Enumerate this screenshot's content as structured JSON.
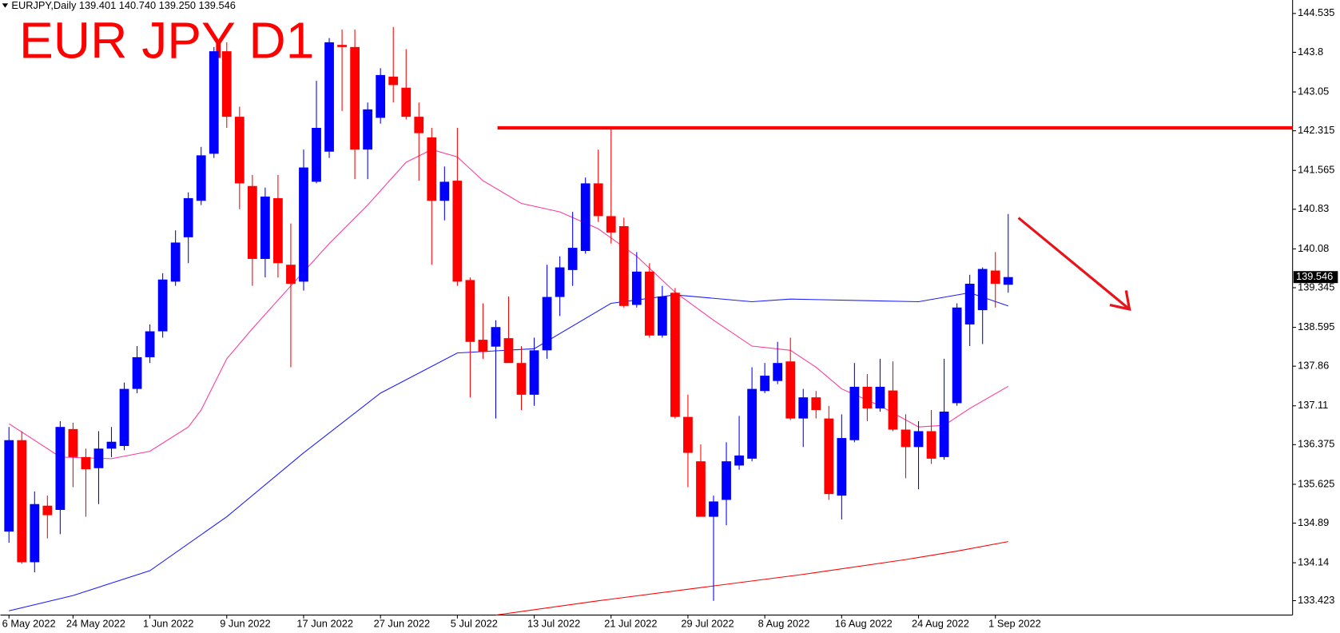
{
  "chart_data": {
    "type": "candlestick",
    "header": "EURJPY,Daily  139.401 140.740 139.250 139.546",
    "title": "EUR JPY D1",
    "categories": [
      "6 May 2022",
      null,
      null,
      null,
      null,
      "24 May 2022",
      null,
      null,
      null,
      null,
      null,
      "1 Jun 2022",
      null,
      null,
      null,
      null,
      null,
      "9 Jun 2022",
      null,
      null,
      null,
      null,
      null,
      "17 Jun 2022",
      null,
      null,
      null,
      null,
      null,
      "27 Jun 2022",
      null,
      null,
      null,
      null,
      null,
      "5 Jul 2022",
      null,
      null,
      null,
      null,
      null,
      "13 Jul 2022",
      null,
      null,
      null,
      null,
      null,
      "21 Jul 2022",
      null,
      null,
      null,
      null,
      null,
      "29 Jul 2022",
      null,
      null,
      null,
      null,
      null,
      "8 Aug 2022",
      null,
      null,
      null,
      null,
      null,
      "16 Aug 2022",
      null,
      null,
      null,
      null,
      null,
      "24 Aug 2022",
      null,
      null,
      null,
      null,
      null,
      "1 Sep 2022",
      null
    ],
    "open": [
      134.73,
      136.46,
      134.15,
      135.22,
      135.14,
      136.67,
      136.14,
      135.93,
      136.3,
      136.35,
      137.43,
      138.03,
      138.52,
      139.46,
      140.3,
      140.99,
      141.88,
      143.82,
      142.58,
      141.27,
      139.89,
      141.04,
      139.78,
      139.46,
      141.35,
      141.92,
      143.94,
      143.9,
      141.96,
      142.56,
      143.34,
      143.13,
      142.58,
      142.19,
      140.99,
      141.37,
      139.49,
      138.36,
      138.23,
      138.39,
      137.92,
      137.32,
      138.16,
      139.17,
      139.68,
      140.04,
      141.32,
      140.7,
      140.51,
      139.02,
      139.65,
      138.44,
      139.25,
      136.9,
      136.06,
      135.01,
      135.33,
      135.98,
      136.11,
      137.39,
      137.58,
      137.95,
      136.87,
      137.27,
      136.87,
      135.41,
      136.46,
      137.47,
      137.06,
      137.4,
      136.66,
      136.33,
      136.63,
      136.14,
      137.16,
      138.65,
      138.92,
      139.67,
      139.401
    ],
    "high": [
      136.71,
      136.63,
      135.49,
      135.41,
      136.82,
      136.79,
      136.3,
      136.63,
      136.71,
      137.55,
      138.24,
      138.65,
      139.62,
      140.43,
      141.15,
      142.01,
      143.9,
      143.99,
      142.77,
      141.48,
      141.24,
      141.48,
      140.56,
      141.96,
      143.26,
      144.07,
      144.23,
      144.23,
      142.85,
      143.5,
      144.28,
      143.86,
      142.85,
      142.37,
      141.64,
      142.37,
      139.54,
      139.05,
      138.73,
      139.18,
      138.24,
      138.4,
      139.78,
      139.94,
      140.78,
      141.43,
      141.96,
      142.37,
      140.67,
      140.02,
      139.81,
      139.38,
      139.34,
      137.32,
      136.38,
      135.41,
      136.42,
      136.92,
      137.84,
      137.92,
      138.32,
      138.4,
      137.43,
      137.39,
      137.11,
      136.95,
      137.92,
      137.71,
      138.0,
      137.95,
      136.95,
      136.82,
      137.03,
      138.0,
      139.05,
      139.59,
      139.73,
      140.02,
      140.74
    ],
    "low": [
      134.52,
      134.12,
      133.96,
      134.6,
      134.68,
      135.57,
      135.01,
      135.25,
      136.14,
      136.27,
      137.35,
      137.92,
      138.4,
      139.38,
      139.81,
      140.91,
      141.8,
      142.37,
      140.83,
      139.38,
      139.54,
      139.54,
      137.84,
      139.29,
      141.32,
      141.8,
      142.69,
      141.4,
      141.4,
      142.45,
      142.85,
      142.53,
      141.37,
      139.78,
      140.62,
      139.38,
      137.27,
      138.0,
      136.87,
      137.92,
      137.03,
      137.11,
      138.0,
      138.81,
      139.38,
      139.99,
      140.59,
      140.18,
      138.97,
      138.97,
      138.4,
      138.4,
      136.87,
      135.57,
      135.01,
      133.42,
      134.85,
      135.9,
      136.06,
      137.35,
      137.52,
      136.84,
      136.33,
      136.87,
      135.33,
      134.96,
      136.42,
      136.82,
      137.0,
      136.63,
      135.74,
      135.53,
      136.01,
      136.09,
      137.11,
      138.24,
      138.28,
      138.97,
      139.25
    ],
    "close": [
      136.46,
      134.15,
      135.25,
      135.04,
      136.71,
      136.14,
      135.91,
      136.3,
      136.43,
      137.43,
      138.03,
      138.52,
      139.5,
      140.2,
      141.04,
      141.85,
      143.82,
      142.58,
      141.32,
      139.89,
      141.07,
      139.81,
      139.42,
      141.62,
      142.37,
      143.99,
      143.9,
      141.96,
      142.72,
      143.37,
      143.18,
      142.58,
      142.27,
      140.99,
      141.35,
      139.46,
      138.32,
      138.13,
      138.6,
      137.92,
      137.32,
      138.16,
      139.17,
      139.73,
      140.1,
      141.32,
      140.7,
      140.39,
      139.0,
      139.65,
      138.44,
      139.18,
      136.9,
      136.22,
      135.01,
      135.3,
      136.06,
      136.17,
      137.43,
      137.68,
      137.92,
      136.87,
      137.27,
      137.03,
      135.44,
      136.5,
      137.47,
      137.06,
      137.47,
      136.66,
      136.33,
      136.63,
      136.11,
      137.0,
      138.97,
      139.42,
      139.7,
      139.42,
      139.546
    ],
    "up_color": "#0000ff",
    "down_color": "#ff0000",
    "overlays": [
      {
        "color": "#ff3a9a",
        "x": [
          0,
          3,
          4,
          8,
          11,
          14,
          15,
          17,
          19,
          22,
          25,
          28,
          31,
          33,
          35,
          37,
          40,
          43,
          46,
          49,
          52,
          55,
          58,
          61,
          63,
          65,
          68,
          71,
          73,
          75,
          78
        ],
        "values": [
          136.77,
          136.3,
          136.14,
          136.11,
          136.25,
          136.71,
          137.03,
          138.0,
          138.57,
          139.38,
          140.18,
          140.91,
          141.72,
          141.96,
          141.82,
          141.37,
          140.94,
          140.78,
          140.46,
          139.94,
          139.26,
          138.73,
          138.24,
          138.16,
          137.84,
          137.43,
          137.11,
          136.71,
          136.74,
          137.06,
          137.48
        ]
      },
      {
        "color": "#1c1cff",
        "x": [
          0,
          5,
          11,
          17,
          23,
          29,
          35,
          41,
          47,
          52,
          58,
          61,
          67,
          71,
          75,
          78
        ],
        "values": [
          133.23,
          133.52,
          133.99,
          135.01,
          136.22,
          137.35,
          138.11,
          138.19,
          139.05,
          139.21,
          139.08,
          139.13,
          139.1,
          139.08,
          139.25,
          139.0
        ]
      },
      {
        "color": "#ff0000",
        "x": [
          38,
          46,
          54,
          62,
          70,
          74,
          78
        ],
        "values": [
          133.15,
          133.42,
          133.67,
          133.92,
          134.2,
          134.36,
          134.54
        ]
      }
    ],
    "hline": {
      "value": 142.37,
      "color": "#ff0000"
    },
    "last_price": 139.546,
    "ylim": [
      133.15,
      144.79
    ],
    "yticks": [
      144.535,
      143.8,
      143.05,
      142.315,
      141.565,
      140.83,
      140.08,
      139.345,
      138.595,
      137.86,
      137.11,
      136.375,
      135.625,
      134.89,
      134.14,
      133.423
    ]
  }
}
